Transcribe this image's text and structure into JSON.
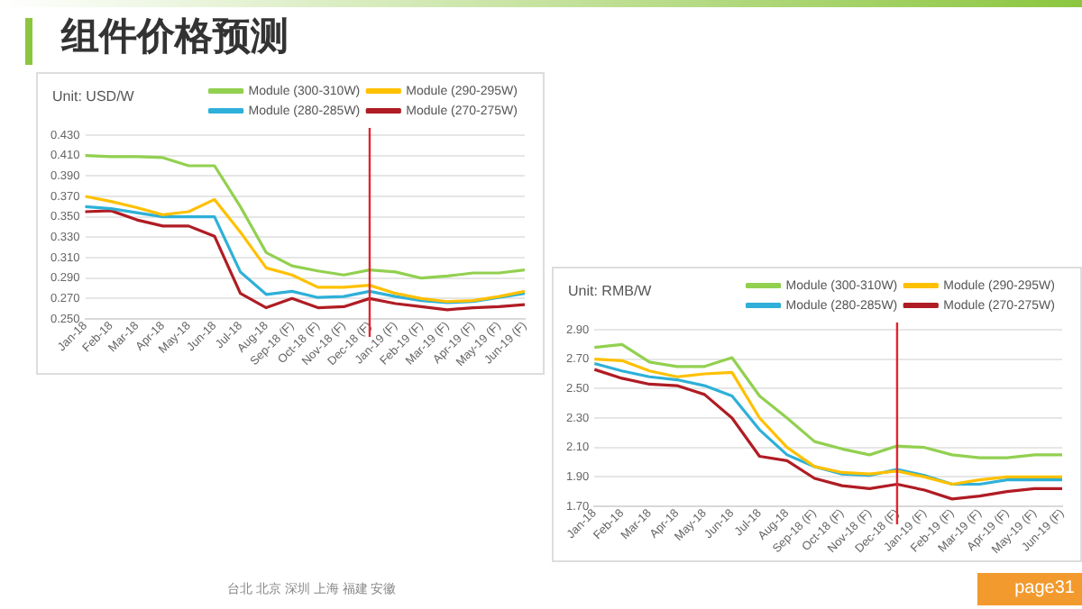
{
  "chart_data": [
    {
      "type": "line",
      "title": "组件价格预测",
      "ylabel": "Unit: USD/W",
      "categories": [
        "Jan-18",
        "Feb-18",
        "Mar-18",
        "Apr-18",
        "May-18",
        "Jun-18",
        "Jul-18",
        "Aug-18",
        "Sep-18 (F)",
        "Oct-18 (F)",
        "Nov-18 (F)",
        "Dec-18 (F)",
        "Jan-19 (F)",
        "Feb-19 (F)",
        "Mar-19 (F)",
        "Apr-19 (F)",
        "May-19 (F)",
        "Jun-19 (F)"
      ],
      "series": [
        {
          "name": "Module (300-310W)",
          "color": "#92d050",
          "values": [
            0.41,
            0.409,
            0.409,
            0.408,
            0.4,
            0.4,
            0.36,
            0.315,
            0.302,
            0.297,
            0.293,
            0.298,
            0.296,
            0.29,
            0.292,
            0.295,
            0.295,
            0.298
          ]
        },
        {
          "name": "Module (290-295W)",
          "color": "#ffc000",
          "values": [
            0.37,
            0.365,
            0.359,
            0.352,
            0.355,
            0.367,
            0.335,
            0.3,
            0.293,
            0.281,
            0.281,
            0.283,
            0.275,
            0.27,
            0.267,
            0.268,
            0.272,
            0.277
          ]
        },
        {
          "name": "Module (280-285W)",
          "color": "#2eb0d8",
          "values": [
            0.36,
            0.358,
            0.354,
            0.35,
            0.35,
            0.35,
            0.296,
            0.274,
            0.277,
            0.271,
            0.272,
            0.277,
            0.272,
            0.268,
            0.266,
            0.267,
            0.271,
            0.275
          ]
        },
        {
          "name": "Module (270-275W)",
          "color": "#b01c24",
          "values": [
            0.355,
            0.356,
            0.347,
            0.341,
            0.341,
            0.331,
            0.275,
            0.261,
            0.27,
            0.261,
            0.262,
            0.27,
            0.265,
            0.262,
            0.259,
            0.261,
            0.262,
            0.264
          ]
        }
      ],
      "ylim": [
        0.25,
        0.43
      ],
      "yticks": [
        {
          "value": 0.25,
          "label": "0.250"
        },
        {
          "value": 0.27,
          "label": "0.270"
        },
        {
          "value": 0.29,
          "label": "0.290"
        },
        {
          "value": 0.31,
          "label": "0.310"
        },
        {
          "value": 0.33,
          "label": "0.330"
        },
        {
          "value": 0.35,
          "label": "0.350"
        },
        {
          "value": 0.37,
          "label": "0.370"
        },
        {
          "value": 0.39,
          "label": "0.390"
        },
        {
          "value": 0.41,
          "label": "0.410"
        },
        {
          "value": 0.43,
          "label": "0.430"
        }
      ],
      "ref_lines": [
        {
          "axis": "x",
          "value": "Dec-18 (F)",
          "color": "#e0252f"
        }
      ],
      "grid": "y",
      "legend": "top",
      "marker": "none"
    },
    {
      "type": "line",
      "ylabel": "Unit: RMB/W",
      "categories": [
        "Jan-18",
        "Feb-18",
        "Mar-18",
        "Apr-18",
        "May-18",
        "Jun-18",
        "Jul-18",
        "Aug-18",
        "Sep-18 (F)",
        "Oct-18 (F)",
        "Nov-18 (F)",
        "Dec-18 (F)",
        "Jan-19 (F)",
        "Feb-19 (F)",
        "Mar-19 (F)",
        "Apr-19 (F)",
        "May-19 (F)",
        "Jun-19 (F)"
      ],
      "series": [
        {
          "name": "Module (300-310W)",
          "color": "#92d050",
          "values": [
            2.78,
            2.8,
            2.68,
            2.65,
            2.65,
            2.71,
            2.45,
            2.3,
            2.14,
            2.09,
            2.05,
            2.11,
            2.1,
            2.05,
            2.03,
            2.03,
            2.05,
            2.05
          ]
        },
        {
          "name": "Module (290-295W)",
          "color": "#ffc000",
          "values": [
            2.7,
            2.69,
            2.62,
            2.58,
            2.6,
            2.61,
            2.3,
            2.1,
            1.97,
            1.93,
            1.92,
            1.94,
            1.9,
            1.85,
            1.88,
            1.9,
            1.9,
            1.9
          ]
        },
        {
          "name": "Module (280-285W)",
          "color": "#2eb0d8",
          "values": [
            2.67,
            2.62,
            2.58,
            2.56,
            2.52,
            2.45,
            2.22,
            2.05,
            1.97,
            1.92,
            1.91,
            1.95,
            1.91,
            1.85,
            1.85,
            1.88,
            1.88,
            1.88
          ]
        },
        {
          "name": "Module (270-275W)",
          "color": "#b01c24",
          "values": [
            2.63,
            2.57,
            2.53,
            2.52,
            2.46,
            2.3,
            2.04,
            2.01,
            1.89,
            1.84,
            1.82,
            1.85,
            1.81,
            1.75,
            1.77,
            1.8,
            1.82,
            1.82
          ]
        }
      ],
      "ylim": [
        1.7,
        2.9
      ],
      "yticks": [
        {
          "value": 1.7,
          "label": "1.70"
        },
        {
          "value": 1.9,
          "label": "1.90"
        },
        {
          "value": 2.1,
          "label": "2.10"
        },
        {
          "value": 2.3,
          "label": "2.30"
        },
        {
          "value": 2.5,
          "label": "2.50"
        },
        {
          "value": 2.7,
          "label": "2.70"
        },
        {
          "value": 2.9,
          "label": "2.90"
        }
      ],
      "ref_lines": [
        {
          "axis": "x",
          "value": "Dec-18 (F)",
          "color": "#e0252f"
        }
      ],
      "grid": "y",
      "legend": "top",
      "marker": "none",
      "annotations": [
        "台北 北京 深圳 上海 福建 安徽",
        "page31"
      ]
    }
  ]
}
